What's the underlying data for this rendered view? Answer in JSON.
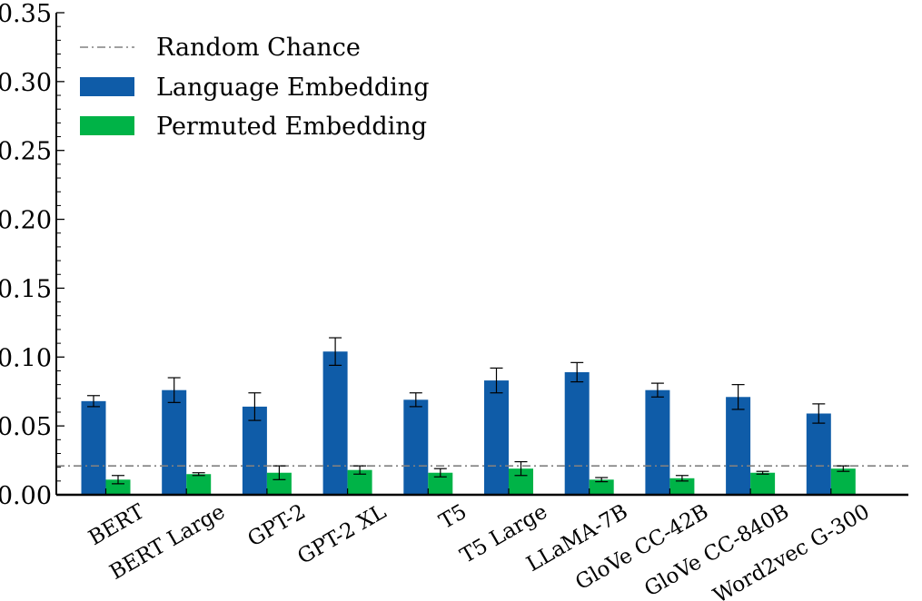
{
  "chart_data": {
    "type": "bar",
    "title": "",
    "xlabel": "",
    "ylabel": "",
    "ylim": [
      0,
      0.35
    ],
    "yticks": [
      "0.00",
      "0.05",
      "0.10",
      "0.15",
      "0.20",
      "0.25",
      "0.30",
      "0.35"
    ],
    "categories": [
      "BERT",
      "BERT Large",
      "GPT-2",
      "GPT-2 XL",
      "T5",
      "T5 Large",
      "LLaMA-7B",
      "GloVe CC-42B",
      "GloVe CC-840B",
      "Word2vec G-300"
    ],
    "series": [
      {
        "name": "Language Embedding",
        "color": "#0f5ca8",
        "values": [
          0.068,
          0.076,
          0.064,
          0.104,
          0.069,
          0.083,
          0.089,
          0.076,
          0.071,
          0.059
        ],
        "errors": [
          0.004,
          0.009,
          0.01,
          0.01,
          0.005,
          0.009,
          0.007,
          0.005,
          0.009,
          0.007
        ]
      },
      {
        "name": "Permuted Embedding",
        "color": "#00b347",
        "values": [
          0.011,
          0.015,
          0.016,
          0.018,
          0.016,
          0.019,
          0.011,
          0.012,
          0.016,
          0.019
        ],
        "errors": [
          0.003,
          0.001,
          0.005,
          0.003,
          0.003,
          0.005,
          0.0015,
          0.002,
          0.001,
          0.002
        ]
      }
    ],
    "reference_line": {
      "name": "Random Chance",
      "value": 0.021,
      "color": "#808080"
    },
    "legend_position": "top-left",
    "grid": false
  }
}
